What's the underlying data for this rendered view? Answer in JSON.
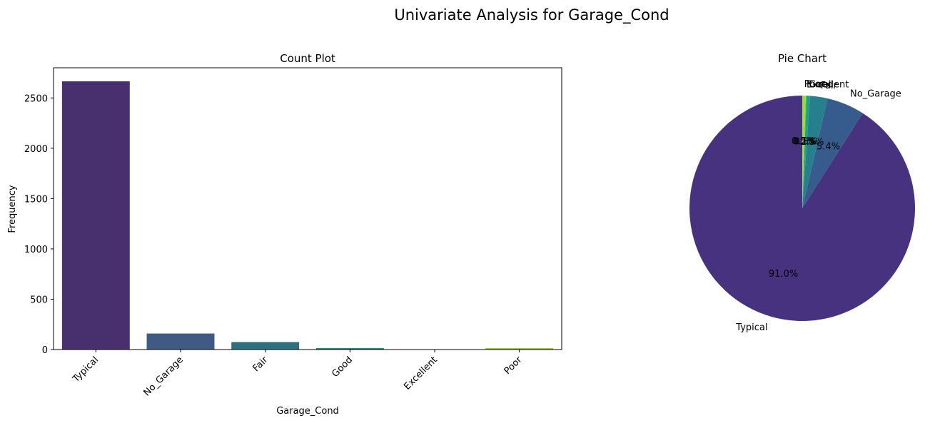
{
  "figure": {
    "suptitle": "Univariate Analysis for Garage_Cond"
  },
  "chart_data": [
    {
      "type": "bar",
      "title": "Count Plot",
      "xlabel": "Garage_Cond",
      "ylabel": "Frequency",
      "categories": [
        "Typical",
        "No_Garage",
        "Fair",
        "Good",
        "Excellent",
        "Poor"
      ],
      "values": [
        2665,
        159,
        74,
        15,
        3,
        14
      ],
      "ylim": [
        0,
        2800
      ],
      "yticks": [
        0,
        500,
        1000,
        1500,
        2000,
        2500
      ],
      "ytick_labels": [
        "0",
        "500",
        "1000",
        "1500",
        "2000",
        "2500"
      ],
      "colors": [
        "#482f6e",
        "#3f5b85",
        "#2d6f7e",
        "#2a8a79",
        "#35a07a",
        "#a4c93e"
      ],
      "grid": false,
      "legend": "none"
    },
    {
      "type": "pie",
      "title": "Pie Chart",
      "labels": [
        "Typical",
        "No_Garage",
        "Fair",
        "Good",
        "Excellent",
        "Poor"
      ],
      "values": [
        91.0,
        5.4,
        2.5,
        0.5,
        0.1,
        0.5
      ],
      "pct_labels": [
        "91.0%",
        "5.4%",
        "2.5%",
        "0.5%",
        "0.1%",
        "0.5%"
      ],
      "colors": [
        "#46327e",
        "#365c8d",
        "#277f8e",
        "#1fa187",
        "#4ac16d",
        "#a0da39"
      ],
      "startangle_deg": 90,
      "direction": "counterclockwise"
    }
  ]
}
